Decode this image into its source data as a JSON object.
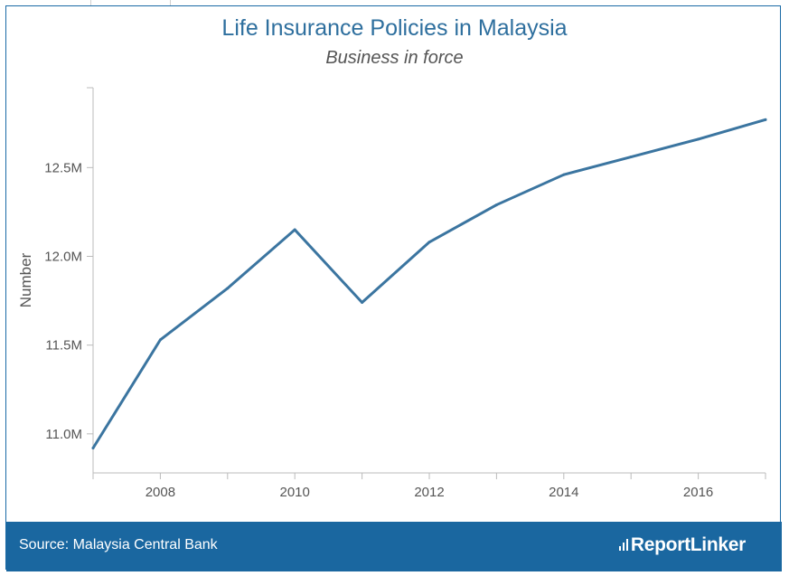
{
  "chart_data": {
    "type": "line",
    "title": "Life Insurance Policies in Malaysia",
    "subtitle": "Business in force",
    "xlabel": "",
    "ylabel": "Number",
    "x": [
      2007,
      2008,
      2009,
      2010,
      2011,
      2012,
      2013,
      2014,
      2015,
      2016,
      2017
    ],
    "series": [
      {
        "name": "Business in force",
        "values": [
          10920000,
          11530000,
          11820000,
          12150000,
          11740000,
          12080000,
          12290000,
          12460000,
          12560000,
          12660000,
          12770000
        ]
      }
    ],
    "xlim": [
      2007,
      2017
    ],
    "ylim": [
      10780000,
      12950000
    ],
    "x_ticks": [
      2008,
      2010,
      2012,
      2014,
      2016
    ],
    "y_ticks": [
      11000000,
      11500000,
      12000000,
      12500000
    ],
    "y_tick_labels": [
      "11.0M",
      "11.5M",
      "12.0M",
      "12.5M"
    ],
    "line_color": "#3b75a0",
    "grid": false
  },
  "footer": {
    "source": "Source: Malaysia Central Bank",
    "brand": "ReportLinker",
    "background_color": "#1a67a0"
  }
}
